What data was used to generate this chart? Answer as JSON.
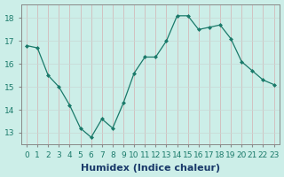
{
  "x": [
    0,
    1,
    2,
    3,
    4,
    5,
    6,
    7,
    8,
    9,
    10,
    11,
    12,
    13,
    14,
    15,
    16,
    17,
    18,
    19,
    20,
    21,
    22,
    23
  ],
  "y": [
    16.8,
    16.7,
    15.5,
    15.0,
    14.2,
    13.2,
    12.8,
    13.6,
    13.2,
    14.3,
    15.6,
    16.3,
    16.3,
    17.0,
    18.1,
    18.1,
    17.5,
    17.6,
    17.7,
    17.1,
    16.1,
    15.7,
    15.3,
    15.1
  ],
  "xlabel": "Humidex (Indice chaleur)",
  "ylim": [
    12.5,
    18.6
  ],
  "xlim": [
    -0.5,
    23.5
  ],
  "yticks": [
    13,
    14,
    15,
    16,
    17,
    18
  ],
  "xticks": [
    0,
    1,
    2,
    3,
    4,
    5,
    6,
    7,
    8,
    9,
    10,
    11,
    12,
    13,
    14,
    15,
    16,
    17,
    18,
    19,
    20,
    21,
    22,
    23
  ],
  "line_color": "#1a7a6a",
  "marker": "D",
  "marker_size": 2.0,
  "bg_color": "#cceee8",
  "grid_color_v": "#d4b0b0",
  "grid_color_h": "#c8d8d4",
  "xlabel_fontsize": 8,
  "tick_fontsize": 6.5,
  "xlabel_color": "#1a3a6a",
  "spine_color": "#888888"
}
